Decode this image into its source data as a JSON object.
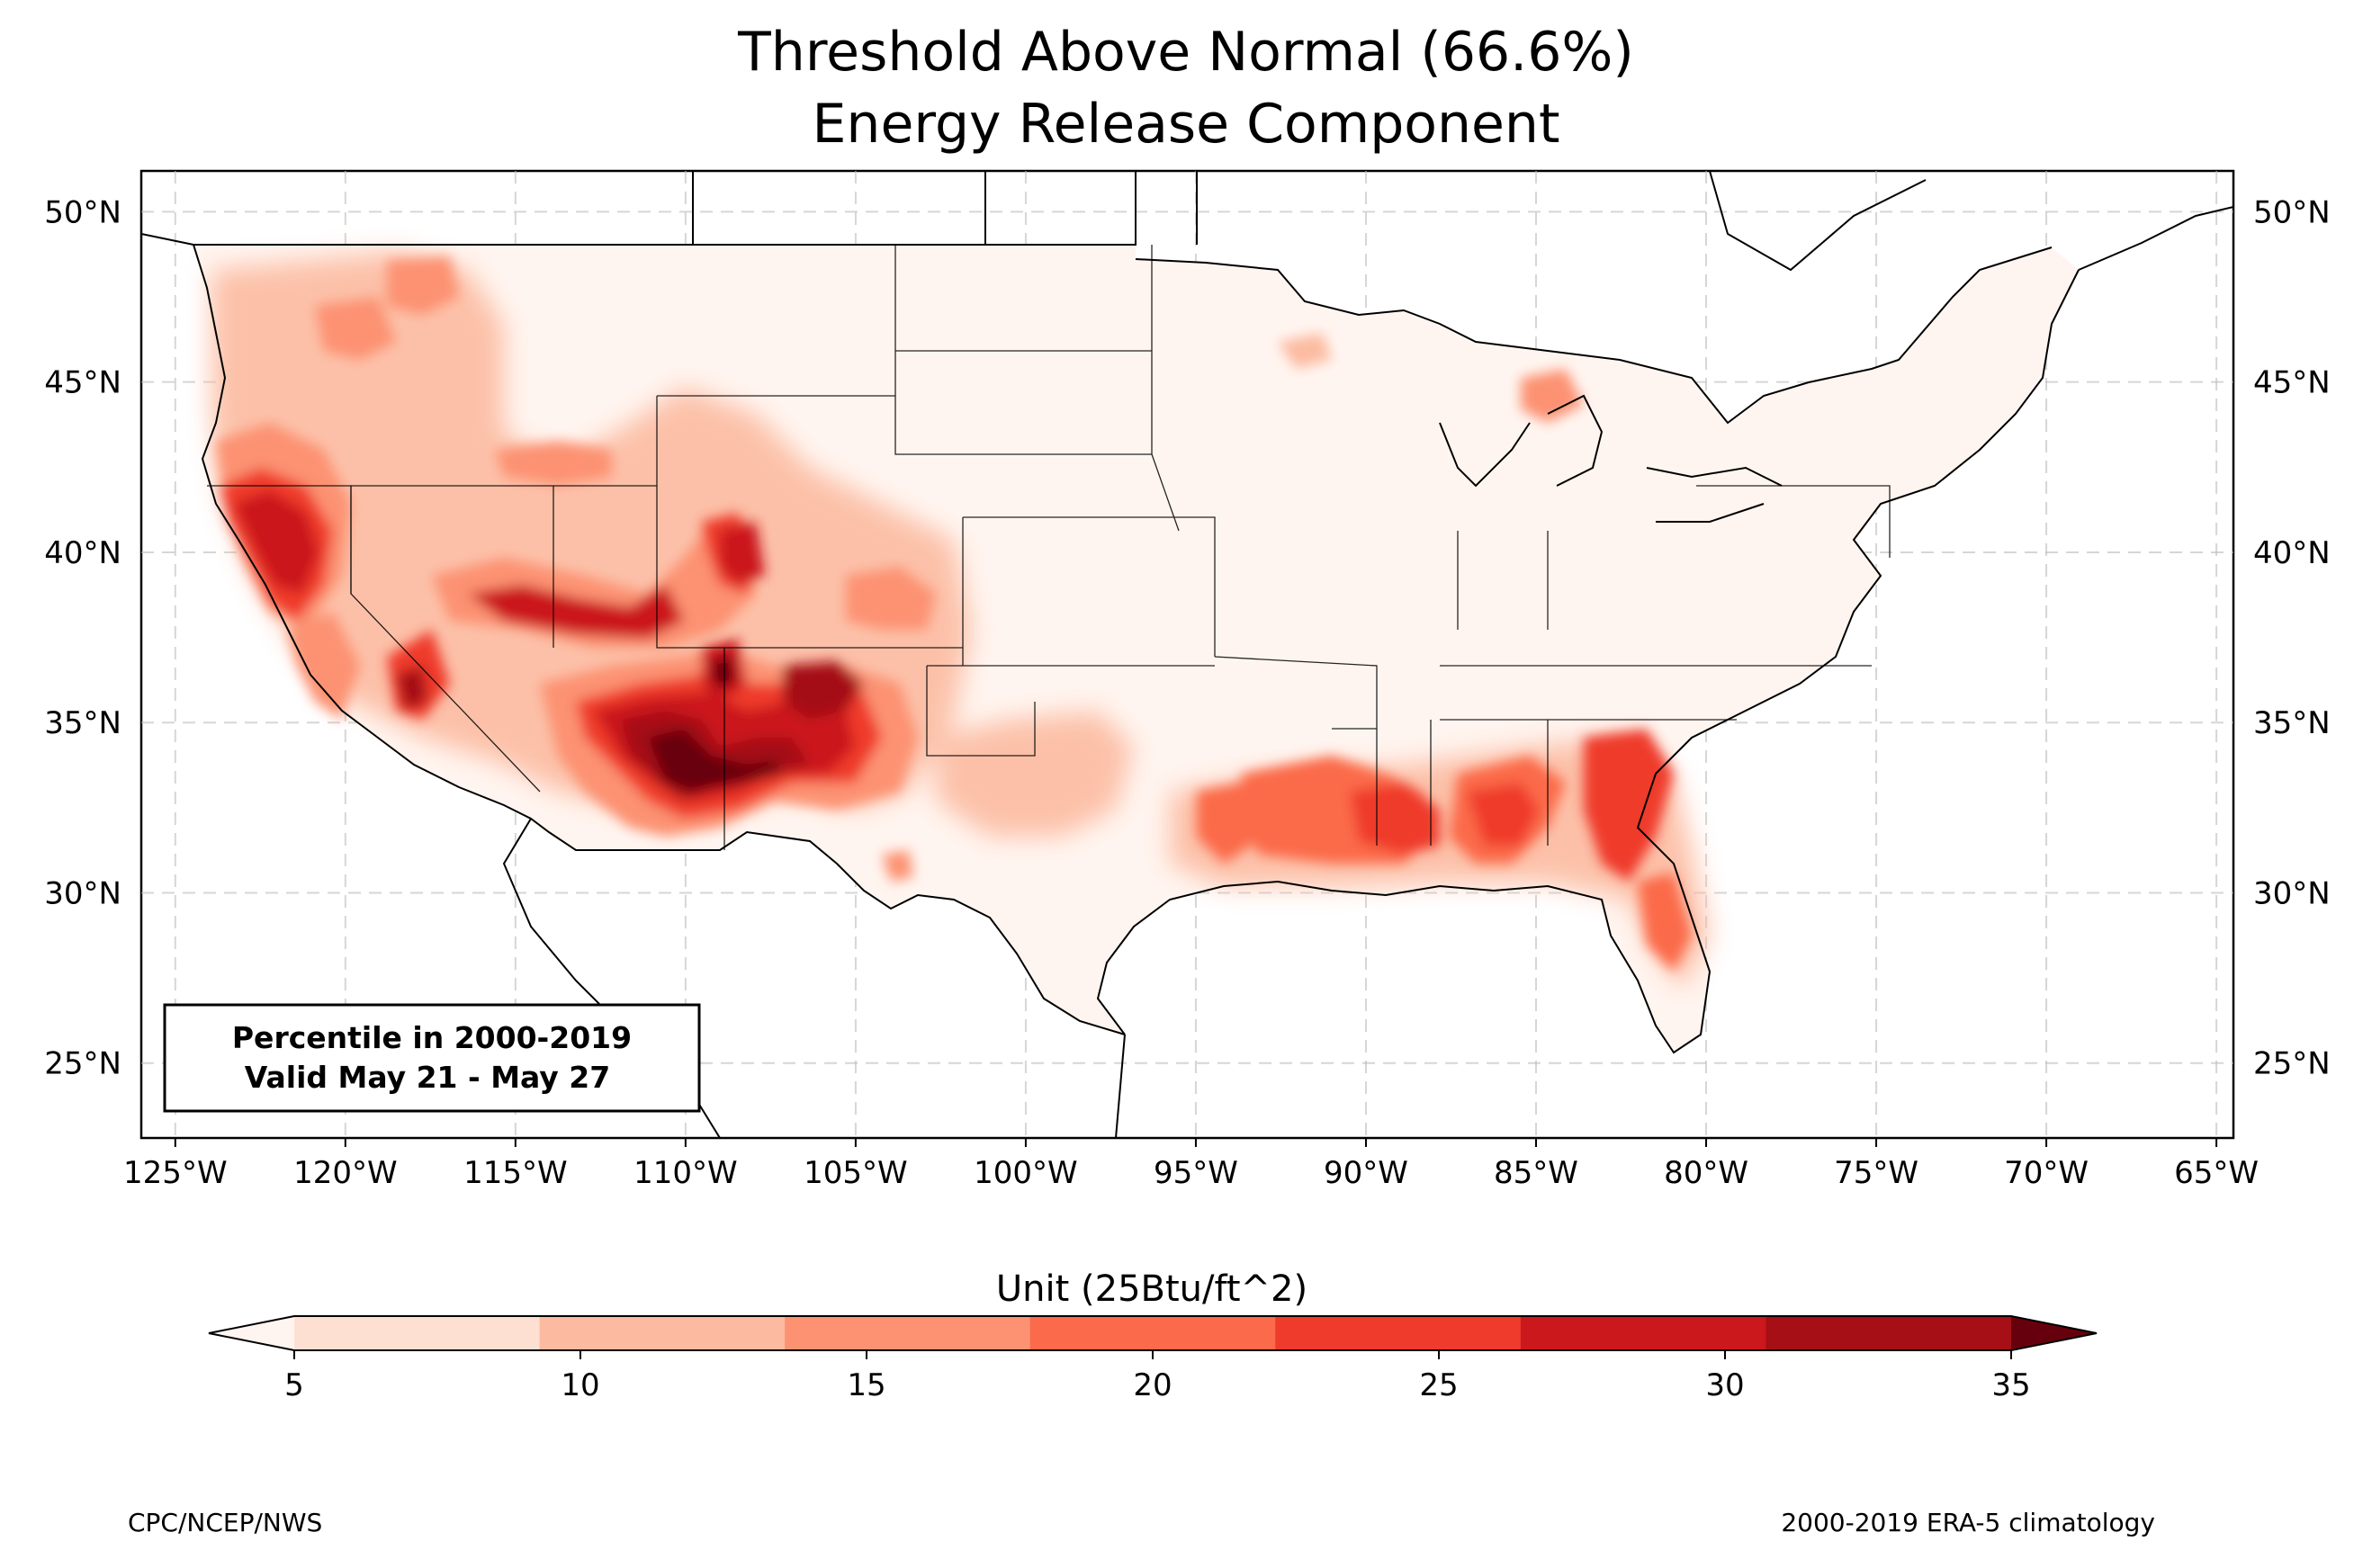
{
  "title": {
    "line1": "Threshold Above Normal (66.6%)",
    "line2": "Energy Release Component"
  },
  "map": {
    "lon_range": [
      -126,
      -64.5
    ],
    "lat_range": [
      22.8,
      51.2
    ],
    "lon_ticks": [
      {
        "value": -125,
        "label": "125°W"
      },
      {
        "value": -120,
        "label": "120°W"
      },
      {
        "value": -115,
        "label": "115°W"
      },
      {
        "value": -110,
        "label": "110°W"
      },
      {
        "value": -105,
        "label": "105°W"
      },
      {
        "value": -100,
        "label": "100°W"
      },
      {
        "value": -95,
        "label": "95°W"
      },
      {
        "value": -90,
        "label": "90°W"
      },
      {
        "value": -85,
        "label": "85°W"
      },
      {
        "value": -80,
        "label": "80°W"
      },
      {
        "value": -75,
        "label": "75°W"
      },
      {
        "value": -70,
        "label": "70°W"
      },
      {
        "value": -65,
        "label": "65°W"
      }
    ],
    "lat_ticks": [
      {
        "value": 25,
        "label": "25°N"
      },
      {
        "value": 30,
        "label": "30°N"
      },
      {
        "value": 35,
        "label": "35°N"
      },
      {
        "value": 40,
        "label": "40°N"
      },
      {
        "value": 45,
        "label": "45°N"
      },
      {
        "value": 50,
        "label": "50°N"
      }
    ],
    "gridlines": true,
    "annotation": {
      "line1": "Percentile in 2000-2019",
      "line2": "Valid May 21 - May 27"
    }
  },
  "colorbar": {
    "label": "Unit (25Btu/ft^2)",
    "ticks": [
      "5",
      "10",
      "15",
      "20",
      "25",
      "30",
      "35"
    ],
    "colors": [
      "#fee0d2",
      "#fcbba1",
      "#fc9272",
      "#fb6a4a",
      "#ef3b2c",
      "#cb181d",
      "#a50f15"
    ],
    "under_color": "#fff5f0",
    "over_color": "#67000d"
  },
  "footer": {
    "left": "CPC/NCEP/NWS",
    "right": "2000-2019 ERA-5 climatology"
  }
}
